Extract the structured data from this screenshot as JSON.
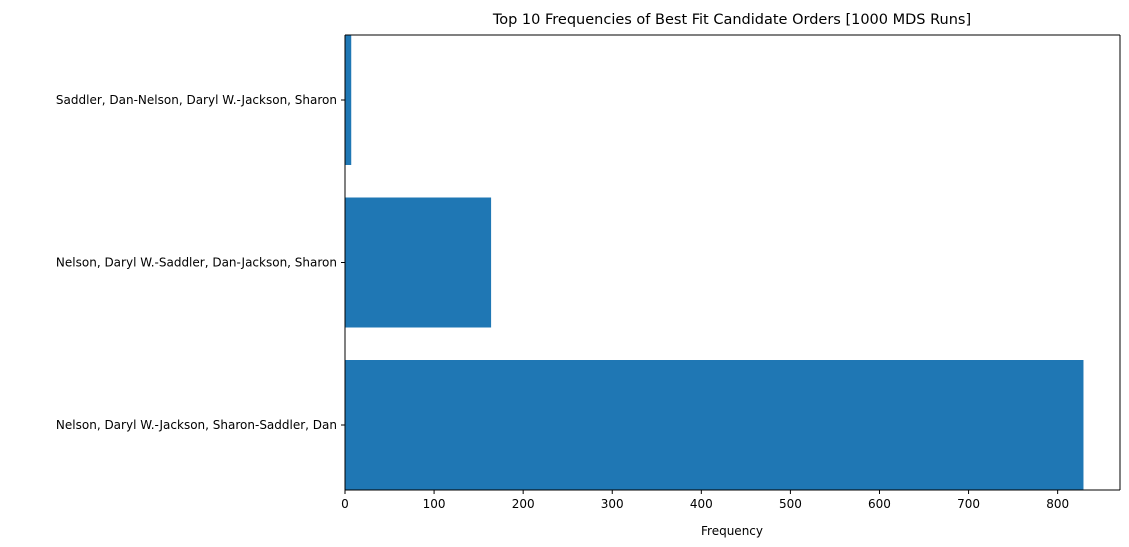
{
  "chart_data": {
    "type": "bar",
    "orientation": "horizontal",
    "title": "Top 10 Frequencies of Best Fit Candidate Orders [1000 MDS Runs]",
    "xlabel": "Frequency",
    "ylabel": "",
    "categories": [
      "Nelson, Daryl W.-Jackson, Sharon-Saddler, Dan",
      "Nelson, Daryl W.-Saddler, Dan-Jackson, Sharon",
      "Saddler, Dan-Nelson, Daryl W.-Jackson, Sharon"
    ],
    "values": [
      829,
      164,
      7
    ],
    "xlim": [
      0,
      870
    ],
    "xticks": [
      0,
      100,
      200,
      300,
      400,
      500,
      600,
      700,
      800
    ],
    "grid": false,
    "legend": "none",
    "bar_color": "#1f77b4"
  }
}
